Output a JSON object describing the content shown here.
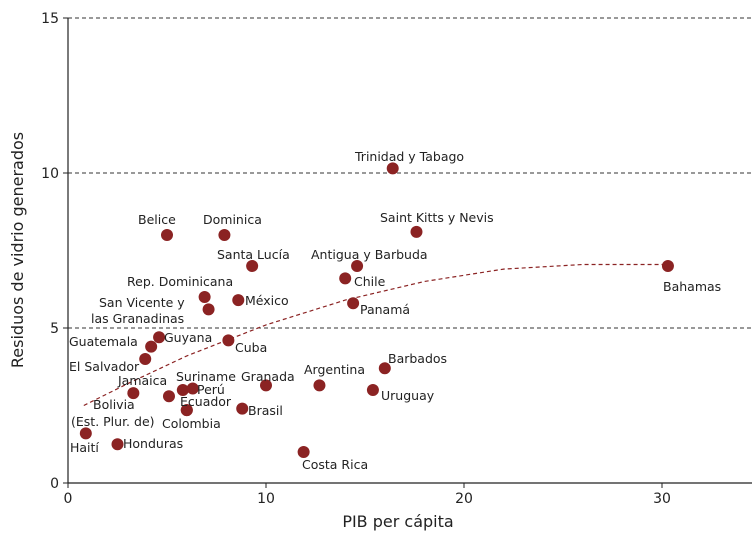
{
  "chart_data": {
    "type": "scatter",
    "xlabel": "PIB per cápita",
    "ylabel": "Residuos de vidrio generados",
    "xlim": [
      0,
      35
    ],
    "ylim": [
      0,
      15
    ],
    "x_ticks": [
      "0",
      "10",
      "20",
      "30"
    ],
    "y_ticks": [
      "0",
      "5",
      "10",
      "15"
    ],
    "grid": "horizontal dashed at 5, 10, 15",
    "point_color": "#8b2323",
    "trend_color": "#8b2323",
    "points": [
      {
        "label": "Trinidad y Tabago",
        "x": 16.4,
        "y": 10.15
      },
      {
        "label": "Belice",
        "x": 5.0,
        "y": 8.0
      },
      {
        "label": "Dominica",
        "x": 7.9,
        "y": 8.0
      },
      {
        "label": "Saint Kitts y Nevis",
        "x": 17.6,
        "y": 8.1
      },
      {
        "label": "Santa Lucía",
        "x": 9.3,
        "y": 7.0
      },
      {
        "label": "Antigua y Barbuda",
        "x": 14.6,
        "y": 7.0
      },
      {
        "label": "Bahamas",
        "x": 30.3,
        "y": 7.0
      },
      {
        "label": "Chile",
        "x": 14.0,
        "y": 6.6
      },
      {
        "label": "Rep. Dominicana",
        "x": 6.9,
        "y": 6.0
      },
      {
        "label": "México",
        "x": 8.6,
        "y": 5.9
      },
      {
        "label": "Panamá",
        "x": 14.4,
        "y": 5.8
      },
      {
        "label": "San Vicente y las Granadinas",
        "x": 7.1,
        "y": 5.6
      },
      {
        "label": "Guyana",
        "x": 4.6,
        "y": 4.7
      },
      {
        "label": "Cuba",
        "x": 8.1,
        "y": 4.6
      },
      {
        "label": "Guatemala",
        "x": 4.2,
        "y": 4.4
      },
      {
        "label": "El Salvador",
        "x": 3.9,
        "y": 4.0
      },
      {
        "label": "Barbados",
        "x": 16.0,
        "y": 3.7
      },
      {
        "label": "Argentina",
        "x": 12.7,
        "y": 3.15
      },
      {
        "label": "Granada",
        "x": 10.0,
        "y": 3.15
      },
      {
        "label": "Suriname",
        "x": 5.8,
        "y": 3.0
      },
      {
        "label": "Perú",
        "x": 6.3,
        "y": 3.05
      },
      {
        "label": "Jamaica",
        "x": 5.1,
        "y": 2.8
      },
      {
        "label": "Uruguay",
        "x": 15.4,
        "y": 3.0
      },
      {
        "label": "Bolivia (Est. Plur. de)",
        "x": 3.3,
        "y": 2.9
      },
      {
        "label": "Ecuador",
        "x": 6.0,
        "y": 2.35
      },
      {
        "label": "Brasil",
        "x": 8.8,
        "y": 2.4
      },
      {
        "label": "Colombia",
        "x": 6.0,
        "y": 2.35
      },
      {
        "label": "Haití",
        "x": 0.9,
        "y": 1.6
      },
      {
        "label": "Honduras",
        "x": 2.5,
        "y": 1.25
      },
      {
        "label": "Costa Rica",
        "x": 11.9,
        "y": 1.0
      }
    ],
    "trendline": {
      "style": "dashed quadratic",
      "x": [
        0.8,
        3,
        6,
        10,
        14,
        18,
        22,
        26,
        30.3
      ],
      "y": [
        2.5,
        3.2,
        4.1,
        5.1,
        5.9,
        6.5,
        6.9,
        7.05,
        7.05
      ]
    }
  }
}
